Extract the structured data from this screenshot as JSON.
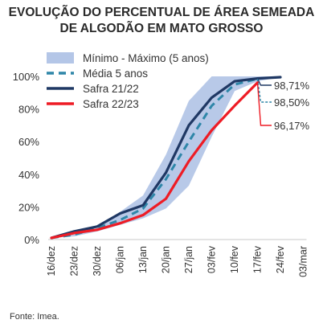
{
  "chart_data": {
    "type": "line",
    "title_lines": [
      "EVOLUÇÃO DO PERCENTUAL DE ÁREA SEMEADA",
      "DE ALGODÃO EM MATO GROSSO"
    ],
    "x": [
      "16/dez",
      "23/dez",
      "30/dez",
      "06/jan",
      "13/jan",
      "20/jan",
      "27/jan",
      "03/fev",
      "10/fev",
      "17/fev",
      "24/fev",
      "03/mar"
    ],
    "ylim": [
      0,
      100
    ],
    "yticks": [
      0,
      20,
      40,
      60,
      80,
      100
    ],
    "ytick_labels": [
      "0%",
      "20%",
      "40%",
      "60%",
      "80%",
      "100%"
    ],
    "band": {
      "name": "Mínimo - Máximo (5 anos)",
      "color": "#b4c6e7",
      "min": [
        1,
        2,
        5,
        9,
        13,
        19,
        33,
        63,
        91,
        97,
        99.5,
        null
      ],
      "max": [
        1,
        3,
        7,
        17,
        27,
        52,
        85,
        100,
        100,
        100,
        100,
        null
      ]
    },
    "series": [
      {
        "name": "Média 5 anos",
        "color": "#2e86a8",
        "dash": true,
        "values": [
          1,
          3,
          7,
          12,
          19,
          37,
          60,
          82,
          95,
          98.5,
          null,
          null
        ],
        "end_label": "98,50%"
      },
      {
        "name": "Safra 21/22",
        "color": "#1f3864",
        "dash": false,
        "values": [
          1,
          5,
          8,
          16,
          21,
          41,
          70,
          87,
          97,
          98.71,
          99.5,
          null
        ],
        "end_label": "98,71%"
      },
      {
        "name": "Safra 22/23",
        "color": "#ee1c25",
        "dash": false,
        "values": [
          1,
          4,
          6,
          10,
          15,
          25,
          48,
          67,
          82,
          96.17,
          null,
          null
        ],
        "end_label": "96,17%"
      }
    ],
    "legend_placement": "top-left",
    "grid": false
  },
  "source": "Fonte: Imea."
}
